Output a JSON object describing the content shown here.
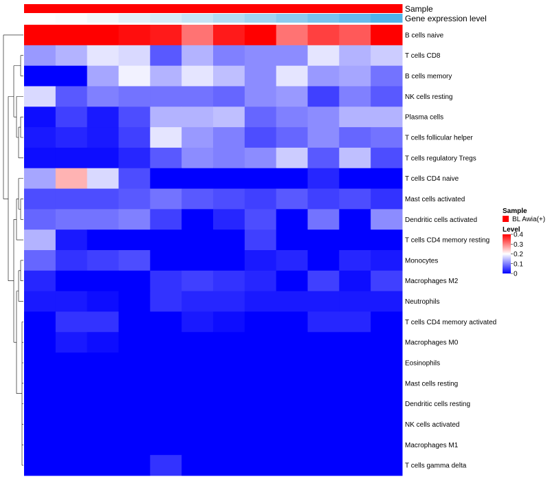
{
  "chart_data": {
    "type": "heatmap",
    "column_annotations": [
      {
        "label": "Sample",
        "colors": [
          "#ff0000",
          "#ff0000",
          "#ff0000",
          "#ff0000",
          "#ff0000",
          "#ff0000",
          "#ff0000",
          "#ff0000",
          "#ff0000",
          "#ff0000",
          "#ff0000",
          "#ff0000"
        ]
      },
      {
        "label": "Gene expression level",
        "colors": [
          "#ffffff",
          "#fbfcfd",
          "#f2f7fa",
          "#e3eff8",
          "#d6ebf8",
          "#c6e4f6",
          "#b2dcf4",
          "#a0d4f2",
          "#8ccbf0",
          "#78c2ee",
          "#66bbec",
          "#4fb3ea"
        ]
      }
    ],
    "rows": [
      "B cells naive",
      "T cells CD8",
      "B cells memory",
      "NK cells resting",
      "Plasma cells",
      "T cells follicular helper",
      "T cells regulatory  Tregs",
      "T cells CD4 naive",
      "Mast cells activated",
      "Dendritic cells activated",
      "T cells CD4 memory resting",
      "Monocytes",
      "Macrophages M2",
      "Neutrophils",
      "T cells CD4 memory activated",
      "Macrophages M0",
      "Eosinophils",
      "Mast cells resting",
      "Dendritic cells resting",
      "NK cells activated",
      "Macrophages M1",
      "T cells gamma delta"
    ],
    "values": [
      [
        0.44,
        0.42,
        0.44,
        0.39,
        0.38,
        0.31,
        0.38,
        0.46,
        0.31,
        0.35,
        0.33,
        0.41
      ],
      [
        0.12,
        0.14,
        0.18,
        0.17,
        0.07,
        0.14,
        0.1,
        0.11,
        0.11,
        0.18,
        0.14,
        0.16
      ],
      [
        0.0,
        0.0,
        0.13,
        0.19,
        0.14,
        0.18,
        0.15,
        0.11,
        0.18,
        0.12,
        0.13,
        0.09
      ],
      [
        0.17,
        0.07,
        0.1,
        0.09,
        0.09,
        0.09,
        0.08,
        0.11,
        0.12,
        0.05,
        0.1,
        0.07
      ],
      [
        0.01,
        0.05,
        0.02,
        0.06,
        0.14,
        0.14,
        0.15,
        0.08,
        0.1,
        0.11,
        0.14,
        0.14
      ],
      [
        0.02,
        0.03,
        0.02,
        0.05,
        0.18,
        0.12,
        0.1,
        0.06,
        0.08,
        0.11,
        0.08,
        0.09
      ],
      [
        0.01,
        0.01,
        0.01,
        0.03,
        0.07,
        0.11,
        0.1,
        0.11,
        0.16,
        0.07,
        0.15,
        0.06
      ],
      [
        0.13,
        0.26,
        0.17,
        0.06,
        0.0,
        0.0,
        0.0,
        0.0,
        0.0,
        0.03,
        0.0,
        0.0
      ],
      [
        0.06,
        0.06,
        0.06,
        0.07,
        0.09,
        0.07,
        0.06,
        0.05,
        0.07,
        0.05,
        0.06,
        0.04
      ],
      [
        0.08,
        0.09,
        0.09,
        0.1,
        0.05,
        0.0,
        0.03,
        0.06,
        0.0,
        0.09,
        0.0,
        0.11
      ],
      [
        0.14,
        0.02,
        0.0,
        0.0,
        0.0,
        0.0,
        0.0,
        0.05,
        0.0,
        0.0,
        0.0,
        0.0
      ],
      [
        0.08,
        0.04,
        0.05,
        0.06,
        0.0,
        0.0,
        0.0,
        0.02,
        0.03,
        0.0,
        0.03,
        0.02
      ],
      [
        0.03,
        0.0,
        0.0,
        0.0,
        0.04,
        0.05,
        0.04,
        0.03,
        0.0,
        0.05,
        0.01,
        0.05
      ],
      [
        0.02,
        0.02,
        0.01,
        0.0,
        0.04,
        0.03,
        0.03,
        0.02,
        0.02,
        0.02,
        0.02,
        0.02
      ],
      [
        0.0,
        0.04,
        0.04,
        0.0,
        0.0,
        0.02,
        0.01,
        0.0,
        0.0,
        0.03,
        0.03,
        0.0
      ],
      [
        0.0,
        0.02,
        0.01,
        0.0,
        0.0,
        0.0,
        0.0,
        0.0,
        0.0,
        0.0,
        0.0,
        0.0
      ],
      [
        0.0,
        0.0,
        0.0,
        0.0,
        0.0,
        0.0,
        0.0,
        0.0,
        0.0,
        0.0,
        0.0,
        0.0
      ],
      [
        0.0,
        0.0,
        0.0,
        0.0,
        0.0,
        0.0,
        0.0,
        0.0,
        0.0,
        0.0,
        0.0,
        0.0
      ],
      [
        0.0,
        0.0,
        0.0,
        0.0,
        0.0,
        0.0,
        0.0,
        0.0,
        0.0,
        0.0,
        0.0,
        0.0
      ],
      [
        0.0,
        0.0,
        0.0,
        0.0,
        0.0,
        0.0,
        0.0,
        0.0,
        0.0,
        0.0,
        0.0,
        0.0
      ],
      [
        0.0,
        0.0,
        0.0,
        0.0,
        0.0,
        0.0,
        0.0,
        0.0,
        0.0,
        0.0,
        0.0,
        0.0
      ],
      [
        0.0,
        0.0,
        0.0,
        0.0,
        0.04,
        0.0,
        0.0,
        0.0,
        0.0,
        0.0,
        0.0,
        0.0
      ]
    ],
    "color_scale": {
      "min": 0,
      "mid": 0.2,
      "max": 0.4,
      "low": "#0000ff",
      "midcolor": "#ffffff",
      "high": "#ff0000"
    },
    "legend": {
      "sample_title": "Sample",
      "sample_entry": "BL Awia(+)",
      "sample_color": "#ff0000",
      "level_title": "Level",
      "level_ticks": [
        "0.4",
        "0.3",
        "0.2",
        "0.1",
        "0"
      ],
      "level_tick_values": [
        0.4,
        0.3,
        0.2,
        0.1,
        0
      ],
      "placement": "right"
    },
    "dendrogram": "rows",
    "grid": false
  }
}
